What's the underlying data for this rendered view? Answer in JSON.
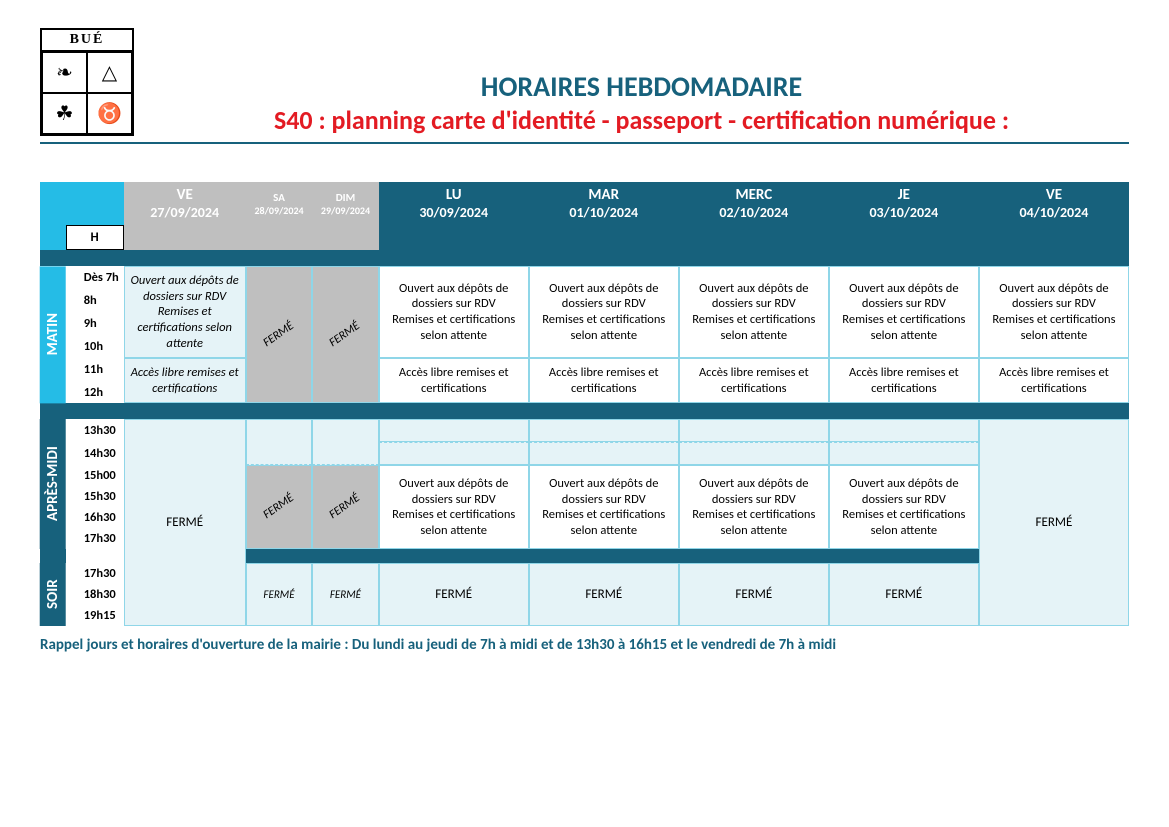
{
  "colors": {
    "teal": "#17617c",
    "cyan": "#25bce6",
    "red": "#e31b23",
    "title": "#17617c",
    "pale": "#e5f3f7",
    "grey": "#bfbfbf",
    "cell_border": "#8fd6e8",
    "dark_band": "#17617c"
  },
  "crest_text": "BUÉ",
  "title": "HORAIRES HEBDOMADAIRE",
  "subtitle": "S40 : planning carte d'identité - passeport - certification numérique :",
  "col_widths": {
    "side": 24,
    "hours": 54,
    "ve1": 114,
    "sa": 62,
    "dim": 62,
    "day": 140
  },
  "header": {
    "h_label": "H",
    "days": [
      {
        "key": "ve1",
        "dow": "VE",
        "date": "27/09/2024",
        "bg": "grey",
        "small": false
      },
      {
        "key": "sa",
        "dow": "SA",
        "date": "28/09/2024",
        "bg": "grey",
        "small": true
      },
      {
        "key": "dim",
        "dow": "DIM",
        "date": "29/09/2024",
        "bg": "grey",
        "small": true
      },
      {
        "key": "lu",
        "dow": "LU",
        "date": "30/09/2024",
        "bg": "teal",
        "small": false
      },
      {
        "key": "mar",
        "dow": "MAR",
        "date": "01/10/2024",
        "bg": "teal",
        "small": false
      },
      {
        "key": "merc",
        "dow": "MERC",
        "date": "02/10/2024",
        "bg": "teal",
        "small": false
      },
      {
        "key": "je",
        "dow": "JE",
        "date": "03/10/2024",
        "bg": "teal",
        "small": false
      },
      {
        "key": "ve2",
        "dow": "VE",
        "date": "04/10/2024",
        "bg": "teal",
        "small": false
      }
    ]
  },
  "sections": {
    "matin": {
      "label": "MATIN",
      "side_bg": "cyan"
    },
    "apres": {
      "label": "APRÈS-MIDI",
      "side_bg": "teal"
    },
    "soir": {
      "label": "SOIR",
      "side_bg": "teal"
    }
  },
  "matin": {
    "times": [
      "Dès 7h",
      "8h",
      "9h",
      "10h",
      "11h",
      "12h"
    ],
    "ve1_top": "Ouvert aux dépôts de dossiers sur RDV Remises et certifications selon attente",
    "ve1_bot": "Accès libre remises et certifications",
    "closed": "FERMÉ",
    "week_top": "Ouvert aux dépôts de dossiers sur RDV\nRemises et certifications selon attente",
    "week_bot": "Accès libre remises et certifications"
  },
  "apres": {
    "times": [
      "13h30",
      "14h30",
      "15h00",
      "15h30",
      "16h30",
      "17h30"
    ],
    "closed": "FERMÉ",
    "week_txt": "Ouvert aux dépôts de dossiers sur RDV\nRemises et certifications selon attente"
  },
  "soir": {
    "times": [
      "17h30",
      "18h30",
      "19h15"
    ],
    "closed": "FERMÉ"
  },
  "footer": "Rappel jours et horaires d'ouverture de la mairie : Du lundi au jeudi de 7h à midi et de 13h30 à 16h15 et le vendredi de 7h à midi"
}
